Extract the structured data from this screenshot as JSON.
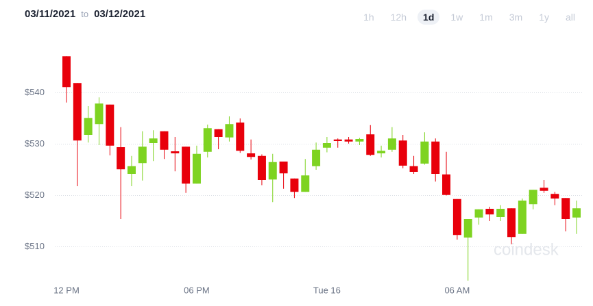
{
  "header": {
    "from": "03/11/2021",
    "to_word": "to",
    "to": "03/12/2021"
  },
  "ranges": [
    "1h",
    "12h",
    "1d",
    "1w",
    "1m",
    "3m",
    "1y",
    "all"
  ],
  "active_range": 2,
  "chart_data": {
    "type": "candlestick",
    "watermark": "coindesk",
    "categories": [
      "12 PM",
      null,
      null,
      null,
      null,
      null,
      null,
      null,
      null,
      null,
      null,
      null,
      "06 PM",
      null,
      null,
      null,
      null,
      null,
      null,
      null,
      null,
      null,
      null,
      null,
      "Tue 16",
      null,
      null,
      null,
      null,
      null,
      null,
      null,
      null,
      null,
      null,
      null,
      "06 AM",
      null,
      null,
      null,
      null,
      null,
      null,
      null,
      null,
      null,
      null,
      null
    ],
    "open": [
      547.1,
      541.9,
      531.8,
      533.9,
      537.7,
      529.4,
      524.2,
      526.3,
      530.2,
      532.5,
      528.6,
      529.5,
      522.3,
      528.5,
      532.9,
      531.3,
      534.2,
      528.2,
      527.7,
      523.1,
      526.6,
      523.3,
      520.7,
      525.7,
      529.3,
      530.9,
      530.9,
      530.5,
      531.9,
      528.2,
      528.9,
      530.7,
      525.7,
      526.2,
      530.5,
      524.1,
      519.3,
      511.8,
      515.7,
      517.4,
      515.8,
      517.5,
      512.5,
      518.3,
      521.5,
      520.3,
      519.5,
      515.7
    ],
    "high": [
      547.1,
      541.9,
      537.4,
      539.1,
      537.7,
      533.3,
      527.7,
      532.5,
      532.7,
      532.5,
      531.4,
      529.5,
      529.7,
      533.8,
      532.9,
      535.4,
      535.0,
      530.9,
      528.0,
      528.1,
      526.6,
      523.3,
      527.1,
      530.3,
      531.4,
      531.1,
      531.4,
      531.2,
      533.7,
      529.7,
      533.3,
      531.8,
      527.7,
      532.3,
      531.1,
      528.5,
      519.3,
      515.4,
      517.3,
      517.8,
      518.1,
      517.5,
      519.4,
      521.1,
      523.0,
      520.7,
      519.5,
      519.0
    ],
    "low": [
      538.1,
      521.8,
      530.3,
      529.8,
      527.8,
      515.4,
      521.8,
      522.9,
      526.7,
      527.1,
      524.7,
      520.5,
      522.3,
      527.4,
      529.0,
      530.5,
      528.3,
      527.0,
      522.0,
      518.7,
      521.3,
      519.5,
      520.7,
      525.0,
      528.4,
      529.3,
      530.1,
      529.8,
      527.7,
      527.4,
      528.5,
      525.3,
      524.2,
      526.0,
      522.7,
      520.0,
      511.4,
      503.4,
      514.3,
      515.0,
      515.0,
      510.5,
      512.5,
      517.3,
      520.5,
      518.1,
      513.0,
      512.5
    ],
    "close": [
      541.1,
      530.7,
      535.1,
      537.9,
      529.7,
      525.1,
      525.7,
      529.5,
      531.1,
      528.9,
      528.2,
      522.3,
      528.1,
      533.1,
      531.4,
      533.9,
      528.7,
      527.5,
      523.0,
      526.5,
      524.3,
      520.7,
      523.9,
      528.9,
      530.2,
      530.6,
      530.5,
      531.0,
      527.9,
      528.7,
      531.1,
      525.8,
      524.6,
      530.5,
      524.2,
      520.1,
      512.3,
      515.4,
      517.3,
      516.3,
      517.4,
      511.9,
      519.0,
      521.1,
      520.9,
      519.4,
      515.4,
      517.5
    ],
    "up_color": "#7ed321",
    "down_color": "#e8000b",
    "ylim": [
      503,
      549
    ],
    "yticks": [
      {
        "value": 510,
        "label": "$510"
      },
      {
        "value": 520,
        "label": "$520"
      },
      {
        "value": 530,
        "label": "$530"
      },
      {
        "value": 540,
        "label": "$540"
      }
    ],
    "grid": true
  }
}
